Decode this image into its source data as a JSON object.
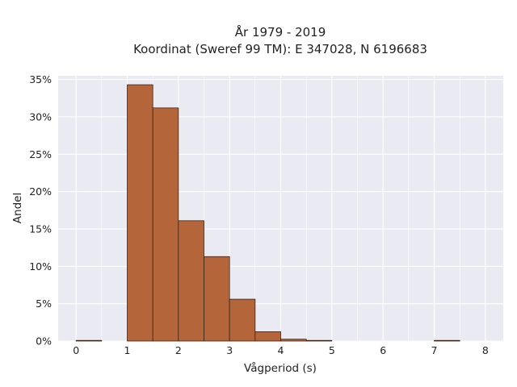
{
  "chart_data": {
    "type": "bar",
    "title": "År 1979 - 2019",
    "subtitle": "Koordinat (Sweref 99 TM): E 347028, N 6196683",
    "xlabel": "Vågperiod (s)",
    "ylabel": "Andel",
    "xlim": [
      -0.35,
      8.35
    ],
    "ylim": [
      0,
      0.355
    ],
    "grid": true,
    "bar_color": "#b5653a",
    "bar_edge_color": "#3a2418",
    "background_color": "#eaeaf2",
    "x_ticks": [
      0,
      1,
      2,
      3,
      4,
      5,
      6,
      7,
      8
    ],
    "x_tick_labels": [
      "0",
      "1",
      "2",
      "3",
      "4",
      "5",
      "6",
      "7",
      "8"
    ],
    "y_ticks": [
      0,
      0.05,
      0.1,
      0.15,
      0.2,
      0.25,
      0.3,
      0.35
    ],
    "y_tick_labels": [
      "0%",
      "5%",
      "10%",
      "15%",
      "20%",
      "25%",
      "30%",
      "35%"
    ],
    "bins": [
      {
        "x0": 0.0,
        "x1": 0.5,
        "value": 0.0005
      },
      {
        "x0": 1.0,
        "x1": 1.5,
        "value": 0.343
      },
      {
        "x0": 1.5,
        "x1": 2.0,
        "value": 0.312
      },
      {
        "x0": 2.0,
        "x1": 2.5,
        "value": 0.161
      },
      {
        "x0": 2.5,
        "x1": 3.0,
        "value": 0.113
      },
      {
        "x0": 3.0,
        "x1": 3.5,
        "value": 0.056
      },
      {
        "x0": 3.5,
        "x1": 4.0,
        "value": 0.0125
      },
      {
        "x0": 4.0,
        "x1": 4.5,
        "value": 0.0025
      },
      {
        "x0": 4.5,
        "x1": 5.0,
        "value": 0.0005
      },
      {
        "x0": 7.0,
        "x1": 7.5,
        "value": 0.0005
      }
    ]
  }
}
